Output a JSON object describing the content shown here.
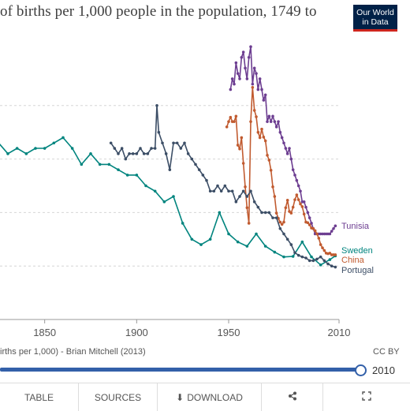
{
  "title": "of births per 1,000 people in the population, 1749 to",
  "logo": {
    "line1": "Our World",
    "line2": "in Data"
  },
  "source": "irths per 1,000) - Brian Mitchell (2013)",
  "license": "CC BY",
  "timeline": {
    "year_label": "2010",
    "progress": 1.0
  },
  "tabs": {
    "table": "TABLE",
    "sources": "SOURCES",
    "download": "DOWNLOAD"
  },
  "icons": {
    "download": "download-icon",
    "share": "share-icon",
    "fullscreen": "fullscreen-icon"
  },
  "chart_data": {
    "type": "line",
    "x_ticks": [
      1850,
      1900,
      1950,
      2010
    ],
    "xlim": [
      1800,
      2010
    ],
    "ylim": [
      0,
      50
    ],
    "gridlines": [
      10,
      20,
      30,
      40
    ],
    "series": [
      {
        "name": "Tunisia",
        "color": "#6d3e91",
        "points": [
          [
            1951,
            43
          ],
          [
            1952,
            45
          ],
          [
            1953,
            44
          ],
          [
            1954,
            48
          ],
          [
            1955,
            46
          ],
          [
            1956,
            45
          ],
          [
            1957,
            49
          ],
          [
            1958,
            50
          ],
          [
            1959,
            47
          ],
          [
            1960,
            45
          ],
          [
            1961,
            49
          ],
          [
            1962,
            51
          ],
          [
            1963,
            44
          ],
          [
            1964,
            47
          ],
          [
            1965,
            46
          ],
          [
            1966,
            43
          ],
          [
            1967,
            45
          ],
          [
            1968,
            43
          ],
          [
            1969,
            41
          ],
          [
            1970,
            42
          ],
          [
            1971,
            37
          ],
          [
            1972,
            38
          ],
          [
            1973,
            37
          ],
          [
            1974,
            38
          ],
          [
            1975,
            37
          ],
          [
            1976,
            36
          ],
          [
            1977,
            37
          ],
          [
            1978,
            35
          ],
          [
            1979,
            34
          ],
          [
            1980,
            33
          ],
          [
            1981,
            32
          ],
          [
            1982,
            31
          ],
          [
            1983,
            32
          ],
          [
            1984,
            30
          ],
          [
            1985,
            28
          ],
          [
            1986,
            27
          ],
          [
            1987,
            26
          ],
          [
            1988,
            25
          ],
          [
            1989,
            24
          ],
          [
            1990,
            22
          ],
          [
            1991,
            22
          ],
          [
            1992,
            21
          ],
          [
            1993,
            20
          ],
          [
            1994,
            19
          ],
          [
            1995,
            18
          ],
          [
            1996,
            17
          ],
          [
            1997,
            16
          ],
          [
            1998,
            16
          ],
          [
            1999,
            16
          ],
          [
            2000,
            16
          ],
          [
            2001,
            16
          ],
          [
            2002,
            16
          ],
          [
            2003,
            16
          ],
          [
            2004,
            16
          ],
          [
            2005,
            16
          ],
          [
            2006,
            16.5
          ],
          [
            2007,
            17
          ],
          [
            2008,
            17.5
          ]
        ]
      },
      {
        "name": "Sweden",
        "color": "#00847e",
        "points": [
          [
            1800,
            35
          ],
          [
            1805,
            33
          ],
          [
            1810,
            31
          ],
          [
            1815,
            33
          ],
          [
            1820,
            34
          ],
          [
            1825,
            33
          ],
          [
            1830,
            31
          ],
          [
            1835,
            32
          ],
          [
            1840,
            31
          ],
          [
            1845,
            32
          ],
          [
            1850,
            32
          ],
          [
            1855,
            33
          ],
          [
            1860,
            34
          ],
          [
            1865,
            32
          ],
          [
            1870,
            29
          ],
          [
            1875,
            31
          ],
          [
            1880,
            29
          ],
          [
            1885,
            29
          ],
          [
            1890,
            28
          ],
          [
            1895,
            27
          ],
          [
            1900,
            27
          ],
          [
            1905,
            25
          ],
          [
            1910,
            24
          ],
          [
            1915,
            22
          ],
          [
            1920,
            23
          ],
          [
            1925,
            18
          ],
          [
            1930,
            15
          ],
          [
            1935,
            14
          ],
          [
            1940,
            15
          ],
          [
            1945,
            20
          ],
          [
            1950,
            16
          ],
          [
            1955,
            14.5
          ],
          [
            1960,
            13.7
          ],
          [
            1965,
            16
          ],
          [
            1970,
            13.7
          ],
          [
            1975,
            12.6
          ],
          [
            1980,
            11.7
          ],
          [
            1985,
            11.8
          ],
          [
            1990,
            14.5
          ],
          [
            1995,
            11.7
          ],
          [
            2000,
            10.2
          ],
          [
            2005,
            11.2
          ],
          [
            2008,
            11.9
          ]
        ]
      },
      {
        "name": "China",
        "color": "#c15b30",
        "points": [
          [
            1949,
            36
          ],
          [
            1950,
            37
          ],
          [
            1951,
            37.8
          ],
          [
            1952,
            37
          ],
          [
            1953,
            37
          ],
          [
            1954,
            38
          ],
          [
            1955,
            32.6
          ],
          [
            1956,
            31.9
          ],
          [
            1957,
            34
          ],
          [
            1958,
            29.2
          ],
          [
            1959,
            24.8
          ],
          [
            1960,
            20.9
          ],
          [
            1961,
            18
          ],
          [
            1962,
            37
          ],
          [
            1963,
            43.4
          ],
          [
            1964,
            39.1
          ],
          [
            1965,
            37.9
          ],
          [
            1966,
            35
          ],
          [
            1967,
            34
          ],
          [
            1968,
            35.6
          ],
          [
            1969,
            34.1
          ],
          [
            1970,
            33.4
          ],
          [
            1971,
            30.7
          ],
          [
            1972,
            29.8
          ],
          [
            1973,
            27.9
          ],
          [
            1974,
            24.8
          ],
          [
            1975,
            23
          ],
          [
            1976,
            19.9
          ],
          [
            1977,
            18.9
          ],
          [
            1978,
            18.2
          ],
          [
            1979,
            17.8
          ],
          [
            1980,
            18.2
          ],
          [
            1981,
            20.9
          ],
          [
            1982,
            22.3
          ],
          [
            1983,
            20.2
          ],
          [
            1984,
            19.9
          ],
          [
            1985,
            21
          ],
          [
            1986,
            22.4
          ],
          [
            1987,
            23.3
          ],
          [
            1988,
            22.4
          ],
          [
            1989,
            21.6
          ],
          [
            1990,
            21.1
          ],
          [
            1991,
            19.7
          ],
          [
            1992,
            18.2
          ],
          [
            1993,
            18.1
          ],
          [
            1994,
            17.7
          ],
          [
            1995,
            17.1
          ],
          [
            1996,
            17
          ],
          [
            1997,
            16.6
          ],
          [
            1998,
            16
          ],
          [
            1999,
            15.2
          ],
          [
            2000,
            14
          ],
          [
            2001,
            13.4
          ],
          [
            2002,
            12.9
          ],
          [
            2003,
            12.4
          ],
          [
            2004,
            12.3
          ],
          [
            2005,
            12.4
          ],
          [
            2006,
            12.1
          ],
          [
            2007,
            12.1
          ],
          [
            2008,
            12.1
          ]
        ]
      },
      {
        "name": "Portugal",
        "color": "#3c4e66",
        "points": [
          [
            1886,
            33
          ],
          [
            1888,
            32
          ],
          [
            1890,
            31
          ],
          [
            1892,
            32
          ],
          [
            1894,
            30
          ],
          [
            1896,
            31
          ],
          [
            1898,
            31
          ],
          [
            1900,
            31
          ],
          [
            1902,
            32
          ],
          [
            1904,
            31
          ],
          [
            1906,
            31
          ],
          [
            1908,
            32
          ],
          [
            1910,
            32
          ],
          [
            1911,
            40
          ],
          [
            1912,
            35
          ],
          [
            1914,
            33
          ],
          [
            1916,
            31
          ],
          [
            1918,
            28
          ],
          [
            1920,
            33
          ],
          [
            1922,
            33
          ],
          [
            1924,
            32
          ],
          [
            1926,
            33
          ],
          [
            1928,
            31
          ],
          [
            1930,
            30
          ],
          [
            1932,
            29
          ],
          [
            1934,
            28
          ],
          [
            1936,
            27
          ],
          [
            1938,
            26
          ],
          [
            1940,
            24
          ],
          [
            1942,
            24
          ],
          [
            1944,
            25
          ],
          [
            1946,
            24
          ],
          [
            1948,
            25
          ],
          [
            1950,
            24
          ],
          [
            1952,
            24
          ],
          [
            1954,
            22
          ],
          [
            1956,
            23
          ],
          [
            1958,
            24
          ],
          [
            1960,
            23
          ],
          [
            1962,
            24
          ],
          [
            1964,
            22
          ],
          [
            1966,
            21
          ],
          [
            1968,
            20
          ],
          [
            1970,
            20
          ],
          [
            1972,
            20
          ],
          [
            1974,
            19
          ],
          [
            1976,
            19
          ],
          [
            1978,
            17
          ],
          [
            1980,
            16
          ],
          [
            1982,
            15
          ],
          [
            1984,
            14
          ],
          [
            1986,
            12.5
          ],
          [
            1988,
            12
          ],
          [
            1990,
            11.7
          ],
          [
            1992,
            11.5
          ],
          [
            1994,
            11
          ],
          [
            1996,
            11
          ],
          [
            1998,
            11.3
          ],
          [
            2000,
            11.7
          ],
          [
            2002,
            11
          ],
          [
            2004,
            10.4
          ],
          [
            2006,
            10
          ],
          [
            2008,
            9.8
          ]
        ]
      }
    ]
  }
}
